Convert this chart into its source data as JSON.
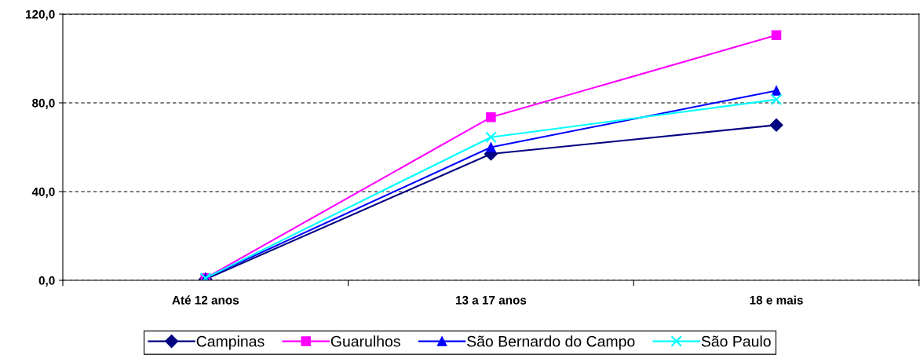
{
  "chart_data": {
    "type": "line",
    "categories": [
      "Até 12 anos",
      "13 a 17 anos",
      "18 e mais"
    ],
    "series": [
      {
        "name": "Campinas",
        "color": "#000080",
        "marker": "diamond",
        "values": [
          0.5,
          57.0,
          70.0
        ]
      },
      {
        "name": "Guarulhos",
        "color": "#ff00ff",
        "marker": "square",
        "values": [
          1.0,
          73.5,
          110.5
        ]
      },
      {
        "name": "São Bernardo do Campo",
        "color": "#0000ff",
        "marker": "triangle",
        "values": [
          1.0,
          60.0,
          85.5
        ]
      },
      {
        "name": "São Paulo",
        "color": "#00ffff",
        "marker": "cross",
        "values": [
          1.0,
          64.5,
          81.5
        ]
      }
    ],
    "ylim": [
      0,
      120
    ],
    "yticks": [
      {
        "value": 0,
        "label": "0,0"
      },
      {
        "value": 40,
        "label": "40,0"
      },
      {
        "value": 80,
        "label": "80,0"
      },
      {
        "value": 120,
        "label": "120,0"
      }
    ],
    "grid": "y",
    "legend": "bottom",
    "line_style": "solid"
  }
}
